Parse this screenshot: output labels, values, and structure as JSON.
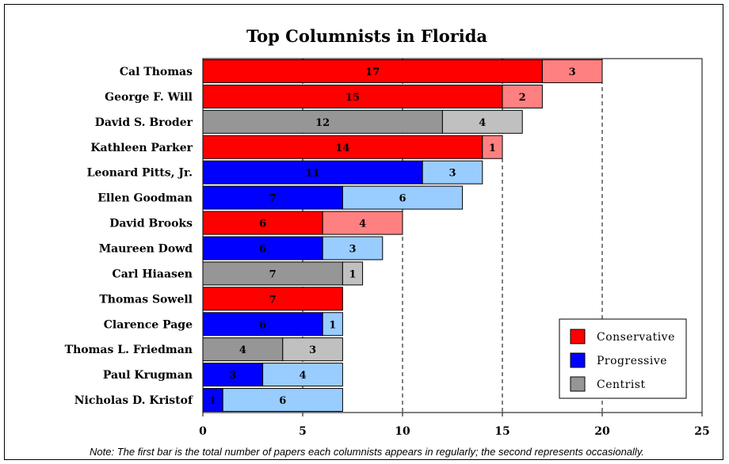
{
  "chart_data": {
    "type": "bar",
    "orientation": "horizontal",
    "stacked": true,
    "title": "Top Columnists in Florida",
    "xlim": [
      0,
      25
    ],
    "xticks": [
      0,
      5,
      10,
      15,
      20,
      25
    ],
    "xlabel": "",
    "ylabel": "",
    "gridlines": "vertical dashed",
    "legend_position": "bottom-right",
    "categories": [
      "Cal Thomas",
      "George F. Will",
      "David S. Broder",
      "Kathleen Parker",
      "Leonard Pitts, Jr.",
      "Ellen Goodman",
      "David Brooks",
      "Maureen Dowd",
      "Carl Hiaasen",
      "Thomas Sowell",
      "Clarence Page",
      "Thomas L. Friedman",
      "Paul Krugman",
      "Nicholas D. Kristof"
    ],
    "groups": [
      "Conservative",
      "Conservative",
      "Centrist",
      "Conservative",
      "Progressive",
      "Progressive",
      "Conservative",
      "Progressive",
      "Centrist",
      "Conservative",
      "Progressive",
      "Centrist",
      "Progressive",
      "Progressive"
    ],
    "regularly": [
      17,
      15,
      12,
      14,
      11,
      7,
      6,
      6,
      7,
      7,
      6,
      4,
      3,
      1
    ],
    "occasionally": [
      3,
      2,
      4,
      1,
      3,
      6,
      4,
      3,
      1,
      0,
      1,
      3,
      4,
      6
    ],
    "legend": [
      {
        "name": "Conservative",
        "color": "#ff0000"
      },
      {
        "name": "Progressive",
        "color": "#0000ff"
      },
      {
        "name": "Centrist",
        "color": "#969696"
      }
    ],
    "colors": {
      "Conservative": {
        "regular": "#ff0000",
        "occasional": "#ff8080"
      },
      "Progressive": {
        "regular": "#0000ff",
        "occasional": "#99ccff"
      },
      "Centrist": {
        "regular": "#969696",
        "occasional": "#c0c0c0"
      }
    },
    "note": "Note: The first bar is the total number of papers each columnists appears in regularly; the second represents occasionally."
  }
}
